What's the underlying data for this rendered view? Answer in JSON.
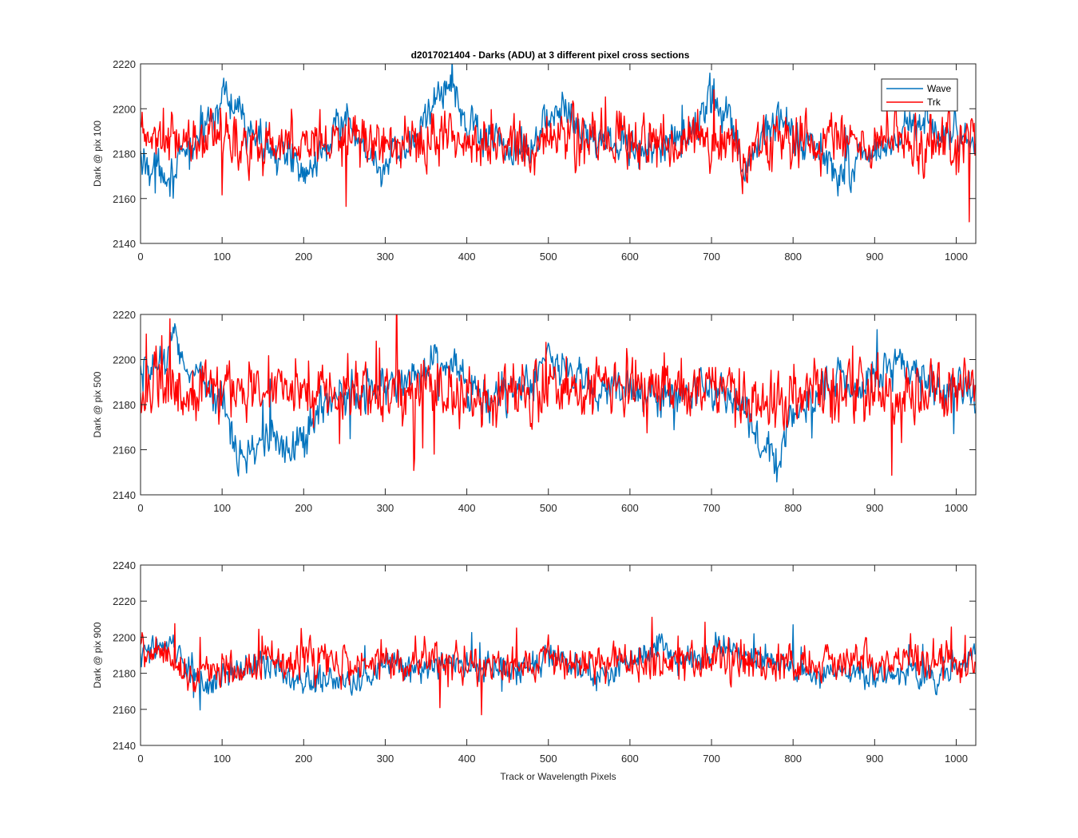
{
  "figure": {
    "title": "d2017021404 - Darks (ADU) at 3 different pixel cross sections",
    "xlabel": "Track or Wavelength Pixels"
  },
  "legend": {
    "placement": "top-right of first panel",
    "entries": [
      {
        "name": "Wave",
        "color": "#0072BD"
      },
      {
        "name": "Trk",
        "color": "#FF0000"
      }
    ]
  },
  "chart_data": [
    {
      "type": "line",
      "ylabel": "Dark @ pix 100",
      "xlim": [
        0,
        1024
      ],
      "ylim": [
        2140,
        2220
      ],
      "xticks": [
        0,
        100,
        200,
        300,
        400,
        500,
        600,
        700,
        800,
        900,
        1000
      ],
      "yticks": [
        2140,
        2160,
        2180,
        2200,
        2220
      ],
      "x": [
        0,
        20,
        40,
        60,
        80,
        100,
        120,
        140,
        160,
        180,
        200,
        220,
        240,
        260,
        280,
        300,
        320,
        340,
        360,
        380,
        400,
        420,
        440,
        460,
        480,
        500,
        520,
        540,
        560,
        580,
        600,
        620,
        640,
        660,
        680,
        700,
        720,
        740,
        760,
        780,
        800,
        820,
        840,
        860,
        880,
        900,
        920,
        940,
        960,
        980,
        1000,
        1020
      ],
      "series": [
        {
          "name": "Wave",
          "color": "#0072BD",
          "noise": 8,
          "values": [
            2176,
            2175,
            2170,
            2182,
            2192,
            2206,
            2196,
            2188,
            2182,
            2178,
            2172,
            2182,
            2194,
            2188,
            2180,
            2173,
            2178,
            2190,
            2204,
            2210,
            2196,
            2187,
            2184,
            2182,
            2186,
            2196,
            2200,
            2191,
            2186,
            2186,
            2183,
            2182,
            2183,
            2185,
            2190,
            2204,
            2196,
            2172,
            2185,
            2196,
            2190,
            2185,
            2176,
            2171,
            2178,
            2182,
            2185,
            2190,
            2193,
            2190,
            2188,
            2184
          ]
        },
        {
          "name": "Trk",
          "color": "#FF0000",
          "noise": 11,
          "values": [
            2186,
            2188,
            2184,
            2186,
            2186,
            2188,
            2184,
            2186,
            2184,
            2185,
            2186,
            2185,
            2186,
            2184,
            2186,
            2186,
            2185,
            2186,
            2186,
            2187,
            2185,
            2186,
            2186,
            2185,
            2185,
            2186,
            2188,
            2186,
            2185,
            2186,
            2186,
            2184,
            2186,
            2185,
            2186,
            2186,
            2186,
            2180,
            2186,
            2186,
            2186,
            2186,
            2185,
            2186,
            2185,
            2186,
            2186,
            2185,
            2186,
            2186,
            2185,
            2183
          ]
        }
      ]
    },
    {
      "type": "line",
      "ylabel": "Dark @ pix 500",
      "xlim": [
        0,
        1024
      ],
      "ylim": [
        2140,
        2220
      ],
      "xticks": [
        0,
        100,
        200,
        300,
        400,
        500,
        600,
        700,
        800,
        900,
        1000
      ],
      "yticks": [
        2140,
        2160,
        2180,
        2200,
        2220
      ],
      "x": [
        0,
        20,
        40,
        60,
        80,
        100,
        120,
        140,
        160,
        180,
        200,
        220,
        240,
        260,
        280,
        300,
        320,
        340,
        360,
        380,
        400,
        420,
        440,
        460,
        480,
        500,
        520,
        540,
        560,
        580,
        600,
        620,
        640,
        660,
        680,
        700,
        720,
        740,
        760,
        780,
        800,
        820,
        840,
        860,
        880,
        900,
        920,
        940,
        960,
        980,
        1000,
        1020
      ],
      "series": [
        {
          "name": "Wave",
          "color": "#0072BD",
          "noise": 8,
          "values": [
            2190,
            2198,
            2208,
            2196,
            2190,
            2180,
            2162,
            2160,
            2164,
            2162,
            2164,
            2178,
            2182,
            2185,
            2187,
            2188,
            2190,
            2193,
            2198,
            2202,
            2184,
            2180,
            2184,
            2186,
            2190,
            2200,
            2196,
            2190,
            2186,
            2185,
            2186,
            2184,
            2184,
            2186,
            2187,
            2188,
            2186,
            2178,
            2160,
            2156,
            2176,
            2181,
            2186,
            2190,
            2184,
            2194,
            2195,
            2198,
            2192,
            2188,
            2186,
            2185
          ]
        },
        {
          "name": "Trk",
          "color": "#FF0000",
          "noise": 12,
          "values": [
            2186,
            2188,
            2184,
            2186,
            2186,
            2188,
            2186,
            2186,
            2185,
            2186,
            2186,
            2185,
            2186,
            2185,
            2186,
            2186,
            2186,
            2186,
            2186,
            2186,
            2185,
            2186,
            2186,
            2185,
            2186,
            2188,
            2188,
            2186,
            2186,
            2186,
            2186,
            2185,
            2186,
            2186,
            2186,
            2186,
            2186,
            2180,
            2176,
            2178,
            2186,
            2186,
            2186,
            2186,
            2188,
            2186,
            2186,
            2186,
            2186,
            2186,
            2186,
            2185
          ]
        }
      ]
    },
    {
      "type": "line",
      "ylabel": "Dark @ pix 900",
      "xlim": [
        0,
        1024
      ],
      "ylim": [
        2140,
        2240
      ],
      "xticks": [
        0,
        100,
        200,
        300,
        400,
        500,
        600,
        700,
        800,
        900,
        1000
      ],
      "yticks": [
        2140,
        2160,
        2180,
        2200,
        2220,
        2240
      ],
      "x": [
        0,
        20,
        40,
        60,
        80,
        100,
        120,
        140,
        160,
        180,
        200,
        220,
        240,
        260,
        280,
        300,
        320,
        340,
        360,
        380,
        400,
        420,
        440,
        460,
        480,
        500,
        520,
        540,
        560,
        580,
        600,
        620,
        640,
        660,
        680,
        700,
        720,
        740,
        760,
        780,
        800,
        820,
        840,
        860,
        880,
        900,
        920,
        940,
        960,
        980,
        1000,
        1020
      ],
      "series": [
        {
          "name": "Wave",
          "color": "#0072BD",
          "noise": 7,
          "values": [
            2190,
            2195,
            2192,
            2184,
            2172,
            2178,
            2180,
            2184,
            2186,
            2180,
            2176,
            2178,
            2174,
            2176,
            2178,
            2184,
            2186,
            2180,
            2184,
            2188,
            2184,
            2183,
            2183,
            2184,
            2184,
            2188,
            2186,
            2184,
            2178,
            2181,
            2186,
            2192,
            2195,
            2188,
            2186,
            2193,
            2196,
            2188,
            2190,
            2186,
            2182,
            2180,
            2178,
            2180,
            2180,
            2180,
            2180,
            2182,
            2178,
            2178,
            2182,
            2192
          ]
        },
        {
          "name": "Trk",
          "color": "#FF0000",
          "noise": 10,
          "values": [
            2194,
            2190,
            2186,
            2180,
            2180,
            2184,
            2184,
            2186,
            2186,
            2186,
            2186,
            2185,
            2186,
            2186,
            2184,
            2186,
            2185,
            2186,
            2186,
            2186,
            2186,
            2186,
            2186,
            2185,
            2186,
            2186,
            2186,
            2184,
            2184,
            2186,
            2186,
            2186,
            2186,
            2188,
            2188,
            2190,
            2188,
            2188,
            2186,
            2186,
            2187,
            2186,
            2186,
            2186,
            2186,
            2185,
            2186,
            2186,
            2186,
            2186,
            2184,
            2182
          ]
        }
      ]
    }
  ]
}
